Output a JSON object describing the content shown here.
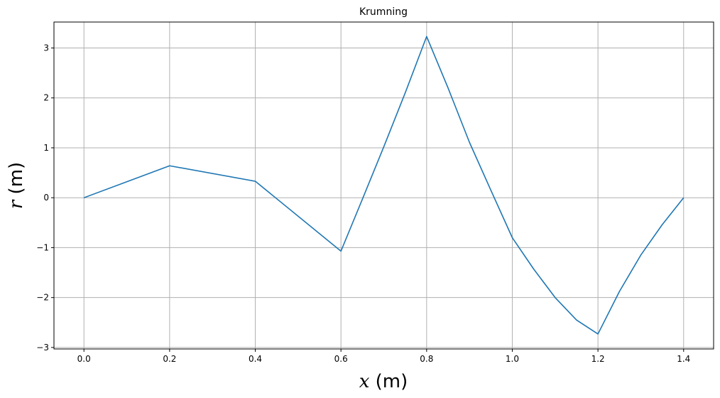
{
  "chart_data": {
    "type": "line",
    "title": "Krumning",
    "xlabel_var": "x",
    "xlabel_unit": " (m)",
    "ylabel_var": "r",
    "ylabel_unit": " (m)",
    "xlim": [
      -0.07,
      1.47
    ],
    "ylim": [
      -3.03,
      3.52
    ],
    "grid": true,
    "x_ticks": [
      0.0,
      0.2,
      0.4,
      0.6,
      0.8,
      1.0,
      1.2,
      1.4
    ],
    "x_tick_labels": [
      "0.0",
      "0.2",
      "0.4",
      "0.6",
      "0.8",
      "1.0",
      "1.2",
      "1.4"
    ],
    "y_ticks": [
      -3,
      -2,
      -1,
      0,
      1,
      2,
      3
    ],
    "y_tick_labels": [
      "−3",
      "−2",
      "−1",
      "0",
      "1",
      "2",
      "3"
    ],
    "series": [
      {
        "name": "r",
        "color": "#1f77b4",
        "x": [
          0.0,
          0.2,
          0.4,
          0.6,
          0.65,
          0.7,
          0.75,
          0.8,
          0.85,
          0.9,
          0.95,
          1.0,
          1.05,
          1.1,
          1.15,
          1.2,
          1.25,
          1.3,
          1.35,
          1.4
        ],
        "y": [
          0.0,
          0.64,
          0.33,
          -1.07,
          -0.03,
          1.02,
          2.1,
          3.23,
          2.2,
          1.11,
          0.15,
          -0.8,
          -1.43,
          -2.0,
          -2.45,
          -2.73,
          -1.88,
          -1.15,
          -0.54,
          0.0
        ]
      }
    ]
  }
}
